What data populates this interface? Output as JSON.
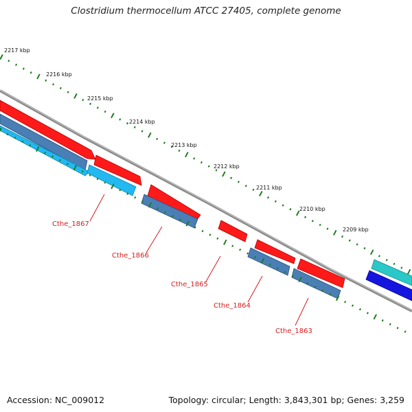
{
  "title": "Clostridium thermocellum ATCC 27405, complete genome",
  "footer": {
    "accession": "Accession: NC_009012",
    "stats": "Topology: circular; Length: 3,843,301 bp; Genes: 3,259"
  },
  "ticks": [
    "2217 kbp",
    "2216 kbp",
    "2215 kbp",
    "2214 kbp",
    "2213 kbp",
    "2212 kbp",
    "2211 kbp",
    "2210 kbp",
    "2209 kbp"
  ],
  "gene_labels": [
    "Cthe_1867",
    "Cthe_1866",
    "Cthe_1865",
    "Cthe_1864",
    "Cthe_1863"
  ],
  "colors": {
    "backbone": "#8a8a8a",
    "forward_cds": "#ff1a1a",
    "reverse_cds": "#4a7fb5",
    "reverse_cds_light": "#22b8f0",
    "tick": "#1f7a1f",
    "label": "#d41c1c",
    "cyan_feature": "#2bc8c8",
    "blue_feature": "#1515e0"
  }
}
